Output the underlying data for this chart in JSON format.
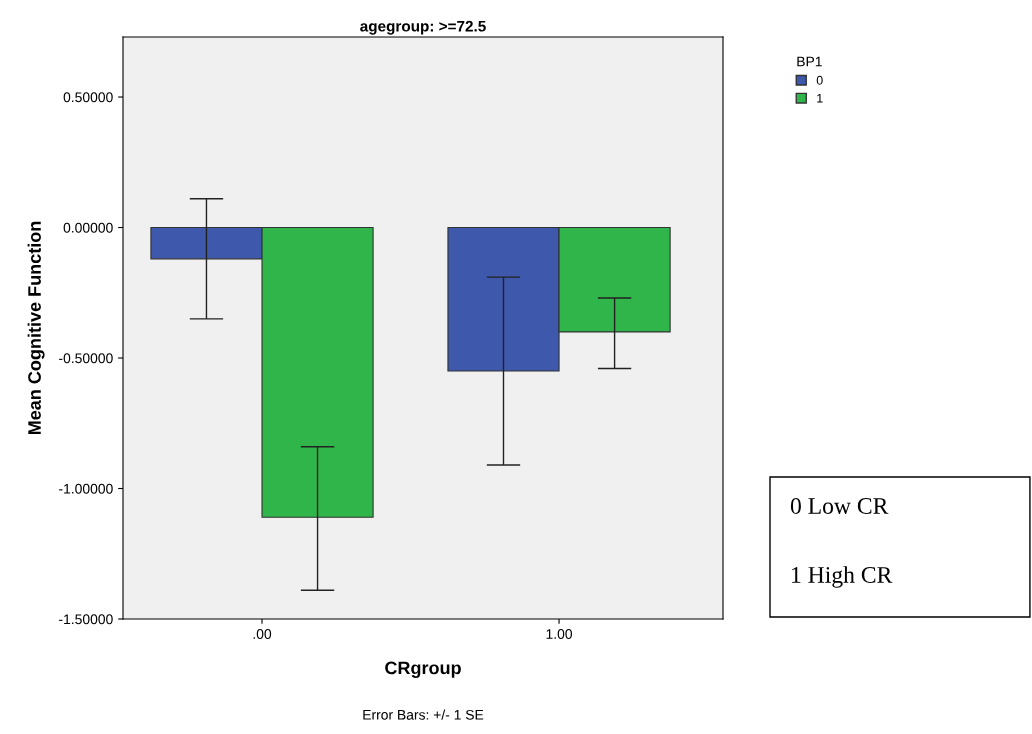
{
  "chart_data": {
    "type": "bar",
    "title": "agegroup: >=72.5",
    "xlabel": "CRgroup",
    "ylabel": "Mean Cognitive Function",
    "legend_title": "BP1",
    "categories": [
      ".00",
      "1.00"
    ],
    "series": [
      {
        "name": "0",
        "color": "#3e58ac",
        "values": [
          -0.12,
          -0.55
        ],
        "errors": [
          [
            -0.35,
            0.11
          ],
          [
            -0.91,
            -0.19
          ]
        ]
      },
      {
        "name": "1",
        "color": "#2fb54a",
        "values": [
          -1.11,
          -0.4
        ],
        "errors": [
          [
            -1.39,
            -0.84
          ],
          [
            -0.54,
            -0.27
          ]
        ]
      }
    ],
    "ylim": [
      -1.5,
      0.73
    ],
    "yticks": [
      {
        "value": -1.5,
        "label": "-1.50000"
      },
      {
        "value": -1.0,
        "label": "-1.00000"
      },
      {
        "value": -0.5,
        "label": "-0.50000"
      },
      {
        "value": 0,
        "label": "0.00000"
      },
      {
        "value": 0.5,
        "label": "0.50000"
      }
    ],
    "grid": false,
    "legend": "top right",
    "annotations": [
      "0 Low CR",
      "1 High CR",
      "Error Bars: +/- 1 SE"
    ]
  }
}
